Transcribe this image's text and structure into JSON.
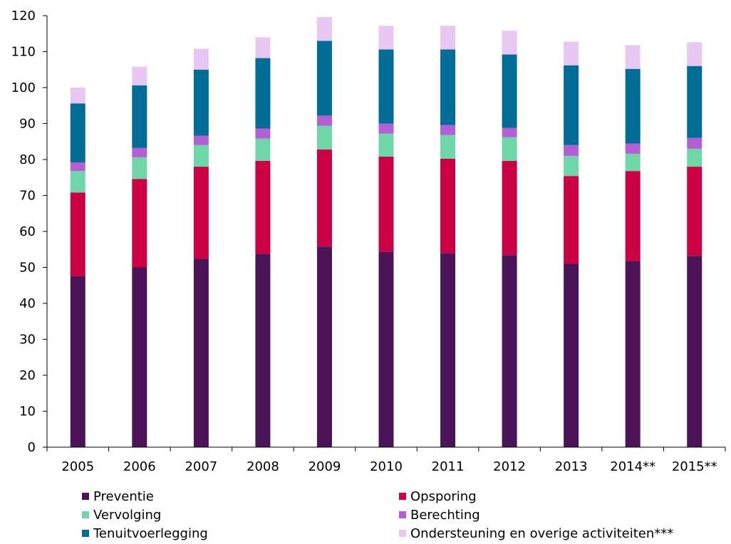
{
  "chart_data": {
    "type": "bar",
    "stacked": true,
    "title": "",
    "xlabel": "",
    "ylabel": "",
    "ylim": [
      0,
      120
    ],
    "yticks": [
      0,
      10,
      20,
      30,
      40,
      50,
      60,
      70,
      80,
      90,
      100,
      110,
      120
    ],
    "grid": false,
    "legend_position": "bottom",
    "categories": [
      "2005",
      "2006",
      "2007",
      "2008",
      "2009",
      "2010",
      "2011",
      "2012",
      "2013",
      "2014**",
      "2015**"
    ],
    "series": [
      {
        "name": "Preventie",
        "color": "#4b1459",
        "values": [
          47.6,
          50.0,
          52.4,
          53.8,
          55.8,
          54.4,
          54.0,
          53.4,
          51.0,
          51.8,
          53.2
        ]
      },
      {
        "name": "Opsporing",
        "color": "#cc0045",
        "values": [
          23.2,
          24.6,
          25.6,
          25.8,
          27.0,
          26.4,
          26.2,
          26.2,
          24.4,
          25.0,
          24.8
        ]
      },
      {
        "name": "Vervolging",
        "color": "#6fd6a8",
        "values": [
          6.0,
          6.0,
          6.0,
          6.2,
          6.6,
          6.4,
          6.6,
          6.6,
          5.6,
          4.8,
          5.0
        ]
      },
      {
        "name": "Berechting",
        "color": "#b35fd6",
        "values": [
          2.4,
          2.6,
          2.6,
          2.8,
          2.8,
          2.8,
          2.8,
          2.6,
          3.0,
          2.8,
          3.0
        ]
      },
      {
        "name": "Tenuitvoerlegging",
        "color": "#006d96",
        "values": [
          16.4,
          17.4,
          18.4,
          19.6,
          20.8,
          20.6,
          21.0,
          20.4,
          22.2,
          20.8,
          20.0
        ]
      },
      {
        "name": "Ondersteuning en overige activiteiten***",
        "color": "#e8c8f2",
        "values": [
          4.4,
          5.2,
          5.8,
          5.8,
          6.6,
          6.6,
          6.6,
          6.6,
          6.6,
          6.6,
          6.6
        ]
      }
    ]
  }
}
